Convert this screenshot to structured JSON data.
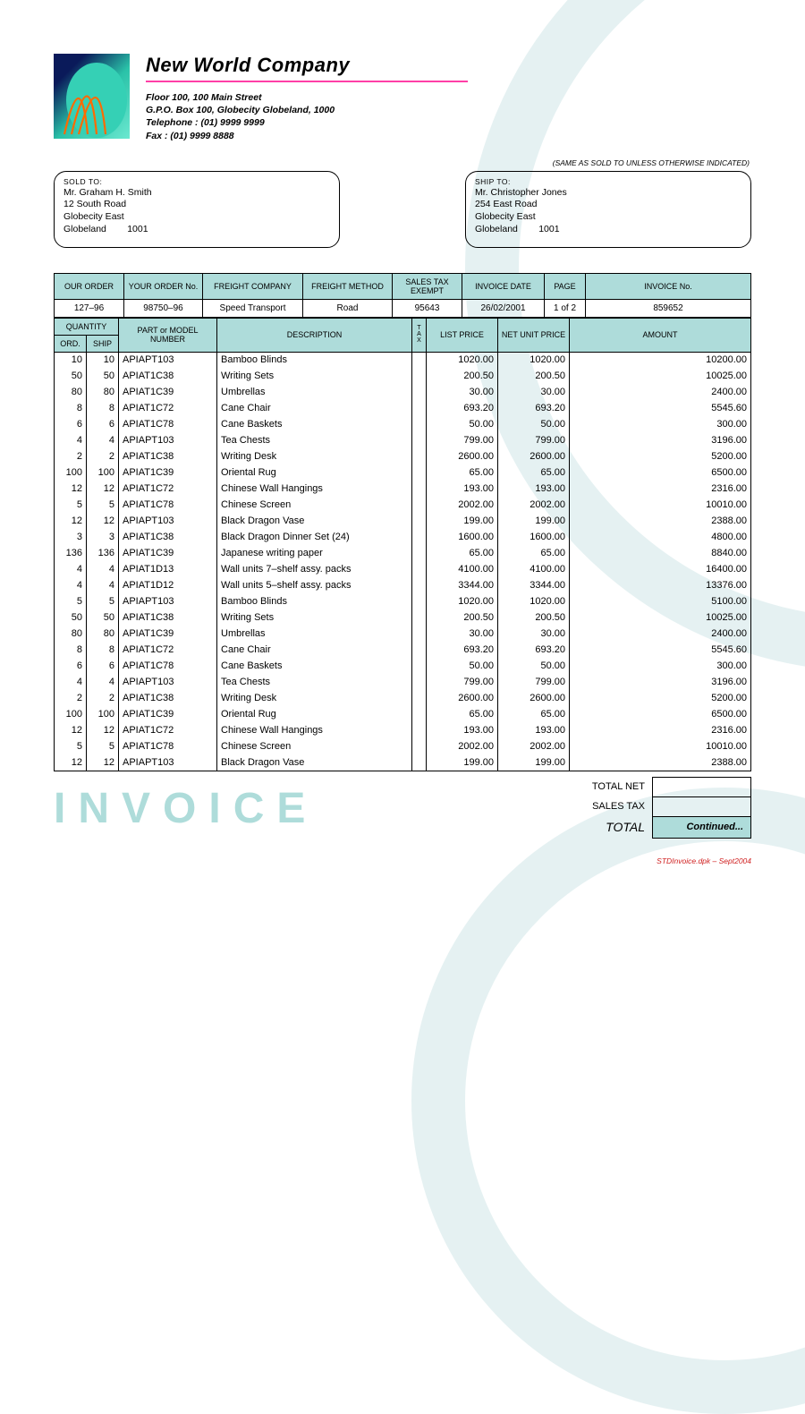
{
  "colors": {
    "header_bg": "#aedcda",
    "pink": "#ff3fa6",
    "watermark": "#aedcda",
    "foot": "#d02020"
  },
  "company": {
    "name": "New World Company",
    "addr1": "Floor 100, 100 Main Street",
    "addr2": "G.P.O. Box 100, Globecity Globeland, 1000",
    "tel": "Telephone : (01) 9999 9999",
    "fax": "Fax : (01) 9999 8888"
  },
  "same_as_note": "(SAME AS SOLD TO UNLESS OTHERWISE INDICATED)",
  "sold_to": {
    "label": "SOLD TO:",
    "l1": "Mr. Graham H. Smith",
    "l2": "12 South Road",
    "l3": "Globecity East",
    "l4": "Globeland        1001"
  },
  "ship_to": {
    "label": "SHIP TO:",
    "l1": "Mr. Christopher Jones",
    "l2": "254 East Road",
    "l3": "Globecity East",
    "l4": "Globeland        1001"
  },
  "meta": {
    "headers": [
      "OUR ORDER",
      "YOUR ORDER No.",
      "FREIGHT COMPANY",
      "FREIGHT METHOD",
      "SALES TAX EXEMPT",
      "INVOICE DATE",
      "PAGE",
      "INVOICE No."
    ],
    "values": [
      "127–96",
      "98750–96",
      "Speed Transport",
      "Road",
      "95643",
      "26/02/2001",
      "1 of 2",
      "859652"
    ]
  },
  "item_headers": {
    "qty": "QUANTITY",
    "ord": "ORD.",
    "ship": "SHIP",
    "part": "PART or MODEL NUMBER",
    "desc": "DESCRIPTION",
    "tax": "T\nA\nX",
    "list": "LIST PRICE",
    "net": "NET UNIT PRICE",
    "amt": "AMOUNT"
  },
  "items": [
    {
      "ord": "10",
      "ship": "10",
      "part": "APIAPT103",
      "desc": "Bamboo Blinds",
      "tax": "",
      "list": "1020.00",
      "net": "1020.00",
      "amt": "10200.00"
    },
    {
      "ord": "50",
      "ship": "50",
      "part": "APIAT1C38",
      "desc": "Writing Sets",
      "tax": "",
      "list": "200.50",
      "net": "200.50",
      "amt": "10025.00"
    },
    {
      "ord": "80",
      "ship": "80",
      "part": "APIAT1C39",
      "desc": "Umbrellas",
      "tax": "",
      "list": "30.00",
      "net": "30.00",
      "amt": "2400.00"
    },
    {
      "ord": "8",
      "ship": "8",
      "part": "APIAT1C72",
      "desc": "Cane Chair",
      "tax": "",
      "list": "693.20",
      "net": "693.20",
      "amt": "5545.60"
    },
    {
      "ord": "6",
      "ship": "6",
      "part": "APIAT1C78",
      "desc": "Cane Baskets",
      "tax": "",
      "list": "50.00",
      "net": "50.00",
      "amt": "300.00"
    },
    {
      "ord": "4",
      "ship": "4",
      "part": "APIAPT103",
      "desc": "Tea Chests",
      "tax": "",
      "list": "799.00",
      "net": "799.00",
      "amt": "3196.00"
    },
    {
      "ord": "2",
      "ship": "2",
      "part": "APIAT1C38",
      "desc": "Writing Desk",
      "tax": "",
      "list": "2600.00",
      "net": "2600.00",
      "amt": "5200.00"
    },
    {
      "ord": "100",
      "ship": "100",
      "part": "APIAT1C39",
      "desc": "Oriental Rug",
      "tax": "",
      "list": "65.00",
      "net": "65.00",
      "amt": "6500.00"
    },
    {
      "ord": "12",
      "ship": "12",
      "part": "APIAT1C72",
      "desc": "Chinese Wall Hangings",
      "tax": "",
      "list": "193.00",
      "net": "193.00",
      "amt": "2316.00"
    },
    {
      "ord": "5",
      "ship": "5",
      "part": "APIAT1C78",
      "desc": "Chinese Screen",
      "tax": "",
      "list": "2002.00",
      "net": "2002.00",
      "amt": "10010.00"
    },
    {
      "ord": "12",
      "ship": "12",
      "part": "APIAPT103",
      "desc": "Black Dragon Vase",
      "tax": "",
      "list": "199.00",
      "net": "199.00",
      "amt": "2388.00"
    },
    {
      "ord": "3",
      "ship": "3",
      "part": "APIAT1C38",
      "desc": "Black Dragon Dinner Set (24)",
      "tax": "",
      "list": "1600.00",
      "net": "1600.00",
      "amt": "4800.00"
    },
    {
      "ord": "136",
      "ship": "136",
      "part": "APIAT1C39",
      "desc": "Japanese writing paper",
      "tax": "",
      "list": "65.00",
      "net": "65.00",
      "amt": "8840.00"
    },
    {
      "ord": "4",
      "ship": "4",
      "part": "APIAT1D13",
      "desc": "Wall units 7–shelf assy. packs",
      "tax": "",
      "list": "4100.00",
      "net": "4100.00",
      "amt": "16400.00"
    },
    {
      "ord": "4",
      "ship": "4",
      "part": "APIAT1D12",
      "desc": "Wall units 5–shelf assy. packs",
      "tax": "",
      "list": "3344.00",
      "net": "3344.00",
      "amt": "13376.00"
    },
    {
      "ord": "5",
      "ship": "5",
      "part": "APIAPT103",
      "desc": "Bamboo Blinds",
      "tax": "",
      "list": "1020.00",
      "net": "1020.00",
      "amt": "5100.00"
    },
    {
      "ord": "50",
      "ship": "50",
      "part": "APIAT1C38",
      "desc": "Writing Sets",
      "tax": "",
      "list": "200.50",
      "net": "200.50",
      "amt": "10025.00"
    },
    {
      "ord": "80",
      "ship": "80",
      "part": "APIAT1C39",
      "desc": "Umbrellas",
      "tax": "",
      "list": "30.00",
      "net": "30.00",
      "amt": "2400.00"
    },
    {
      "ord": "8",
      "ship": "8",
      "part": "APIAT1C72",
      "desc": "Cane Chair",
      "tax": "",
      "list": "693.20",
      "net": "693.20",
      "amt": "5545.60"
    },
    {
      "ord": "6",
      "ship": "6",
      "part": "APIAT1C78",
      "desc": "Cane Baskets",
      "tax": "",
      "list": "50.00",
      "net": "50.00",
      "amt": "300.00"
    },
    {
      "ord": "4",
      "ship": "4",
      "part": "APIAPT103",
      "desc": "Tea Chests",
      "tax": "",
      "list": "799.00",
      "net": "799.00",
      "amt": "3196.00"
    },
    {
      "ord": "2",
      "ship": "2",
      "part": "APIAT1C38",
      "desc": "Writing Desk",
      "tax": "",
      "list": "2600.00",
      "net": "2600.00",
      "amt": "5200.00"
    },
    {
      "ord": "100",
      "ship": "100",
      "part": "APIAT1C39",
      "desc": "Oriental Rug",
      "tax": "",
      "list": "65.00",
      "net": "65.00",
      "amt": "6500.00"
    },
    {
      "ord": "12",
      "ship": "12",
      "part": "APIAT1C72",
      "desc": "Chinese Wall Hangings",
      "tax": "",
      "list": "193.00",
      "net": "193.00",
      "amt": "2316.00"
    },
    {
      "ord": "5",
      "ship": "5",
      "part": "APIAT1C78",
      "desc": "Chinese Screen",
      "tax": "",
      "list": "2002.00",
      "net": "2002.00",
      "amt": "10010.00"
    },
    {
      "ord": "12",
      "ship": "12",
      "part": "APIAPT103",
      "desc": "Black Dragon Vase",
      "tax": "",
      "list": "199.00",
      "net": "199.00",
      "amt": "2388.00"
    }
  ],
  "watermark": "INVOICE",
  "totals": {
    "net_label": "TOTAL NET",
    "net_val": "",
    "tax_label": "SALES TAX",
    "tax_val": "",
    "total_label": "TOTAL",
    "total_val": "Continued..."
  },
  "footer": "STDInvoice.dpk – Sept2004"
}
